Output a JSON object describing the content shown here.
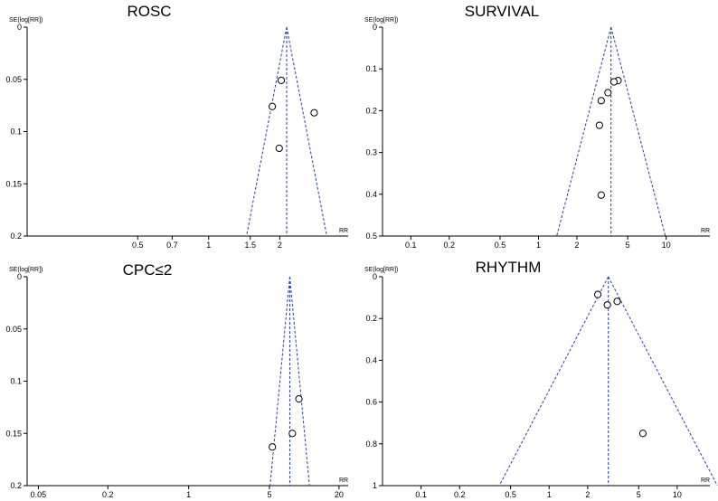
{
  "chart_data": [
    {
      "type": "scatter",
      "title": "ROSC",
      "ylabel": "SE(log[RR])",
      "xlabel": "RR",
      "x_scale": "log",
      "y_inverted": true,
      "xlim": [
        0.17,
        3.9
      ],
      "ylim": [
        0,
        0.2
      ],
      "x_ticks": [
        0.5,
        0.7,
        1,
        1.5,
        2
      ],
      "x_tick_labels": [
        "0.5",
        "0.7",
        "1",
        "1.5",
        "2"
      ],
      "y_ticks": [
        0,
        0.05,
        0.1,
        0.15,
        0.2
      ],
      "y_tick_labels": [
        "0",
        "0.05",
        "0.1",
        "0.15",
        "0.2"
      ],
      "pooled_rr": 2.14,
      "funnel": true,
      "points": [
        {
          "x": 2.03,
          "y": 0.051
        },
        {
          "x": 1.86,
          "y": 0.076
        },
        {
          "x": 2.8,
          "y": 0.082
        },
        {
          "x": 1.99,
          "y": 0.116
        }
      ]
    },
    {
      "type": "scatter",
      "title": "SURVIVAL",
      "ylabel": "SE(log[RR])",
      "xlabel": "RR",
      "x_scale": "log",
      "y_inverted": true,
      "xlim": [
        0.06,
        22
      ],
      "ylim": [
        0,
        0.5
      ],
      "x_ticks": [
        0.1,
        0.2,
        0.5,
        1,
        2,
        5,
        10
      ],
      "x_tick_labels": [
        "0.1",
        "0.2",
        "0.5",
        "1",
        "2",
        "5",
        "10"
      ],
      "y_ticks": [
        0,
        0.1,
        0.2,
        0.3,
        0.4,
        0.5
      ],
      "y_tick_labels": [
        "0",
        "0.1",
        "0.2",
        "0.3",
        "0.4",
        "0.5"
      ],
      "pooled_rr": 3.7,
      "funnel": true,
      "points": [
        {
          "x": 4.2,
          "y": 0.128
        },
        {
          "x": 3.9,
          "y": 0.131
        },
        {
          "x": 3.5,
          "y": 0.157
        },
        {
          "x": 3.1,
          "y": 0.176
        },
        {
          "x": 3.0,
          "y": 0.235
        },
        {
          "x": 3.1,
          "y": 0.402
        }
      ]
    },
    {
      "type": "scatter",
      "title": "CPC≤2",
      "ylabel": "SE(log[RR])",
      "xlabel": "RR",
      "x_scale": "log",
      "y_inverted": true,
      "xlim": [
        0.04,
        24
      ],
      "ylim": [
        0,
        0.2
      ],
      "x_ticks": [
        0.05,
        0.2,
        1,
        5,
        20
      ],
      "x_tick_labels": [
        "0.05",
        "0.2",
        "1",
        "5",
        "20"
      ],
      "y_ticks": [
        0,
        0.05,
        0.1,
        0.15,
        0.2
      ],
      "y_tick_labels": [
        "0",
        "0.05",
        "0.1",
        "0.15",
        "0.2"
      ],
      "pooled_rr": 7.5,
      "funnel": true,
      "points": [
        {
          "x": 9.0,
          "y": 0.117
        },
        {
          "x": 7.9,
          "y": 0.15
        },
        {
          "x": 5.3,
          "y": 0.163
        }
      ]
    },
    {
      "type": "scatter",
      "title": "RHYTHM",
      "ylabel": "SE(log[RR])",
      "xlabel": "RR",
      "x_scale": "log",
      "y_inverted": true,
      "xlim": [
        0.05,
        18
      ],
      "ylim": [
        0,
        1
      ],
      "x_ticks": [
        0.1,
        0.2,
        0.5,
        1,
        2,
        5,
        10
      ],
      "x_tick_labels": [
        "0.1",
        "0.2",
        "0.5",
        "1",
        "2",
        "5",
        "10"
      ],
      "y_ticks": [
        0,
        0.2,
        0.4,
        0.6,
        0.8,
        1
      ],
      "y_tick_labels": [
        "0",
        "0.2",
        "0.4",
        "0.6",
        "0.8",
        "1"
      ],
      "pooled_rr": 2.9,
      "funnel": true,
      "points": [
        {
          "x": 2.4,
          "y": 0.085
        },
        {
          "x": 3.4,
          "y": 0.118
        },
        {
          "x": 2.85,
          "y": 0.135
        },
        {
          "x": 5.4,
          "y": 0.75
        }
      ]
    }
  ],
  "colors": {
    "funnel_line": "#2a3fb0",
    "axis": "#000000",
    "marker_stroke": "#000000"
  }
}
